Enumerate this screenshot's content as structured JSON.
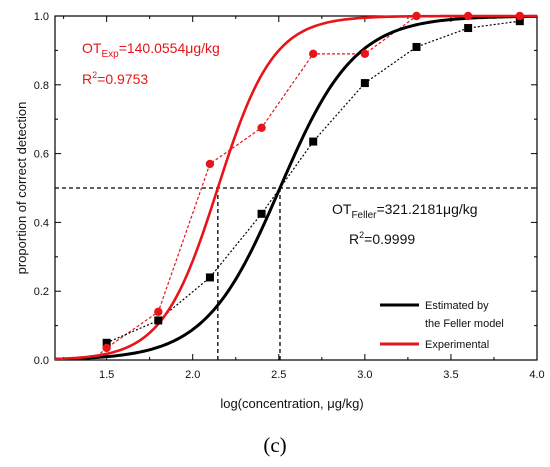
{
  "chart_data": {
    "type": "scatter",
    "xlabel": "log(concentration, μg/kg)",
    "ylabel": "proportion of correct detection",
    "xlim": [
      1.2,
      4.0
    ],
    "ylim": [
      0.0,
      1.0
    ],
    "xticks": [
      "1.5",
      "2.0",
      "2.5",
      "3.0",
      "3.5",
      "4.0"
    ],
    "yticks": [
      "0.0",
      "0.2",
      "0.4",
      "0.6",
      "0.8",
      "1.0"
    ],
    "series": [
      {
        "name": "Estimated by the Feller model",
        "legend_line1": "Estimated by",
        "legend_line2": "the Feller model",
        "color": "#000000",
        "points": [
          {
            "x": 1.5,
            "y": 0.05
          },
          {
            "x": 1.8,
            "y": 0.115
          },
          {
            "x": 2.1,
            "y": 0.24
          },
          {
            "x": 2.4,
            "y": 0.425
          },
          {
            "x": 2.7,
            "y": 0.635
          },
          {
            "x": 3.0,
            "y": 0.805
          },
          {
            "x": 3.3,
            "y": 0.91
          },
          {
            "x": 3.6,
            "y": 0.965
          },
          {
            "x": 3.9,
            "y": 0.985
          }
        ],
        "fit_midpoint": 2.507,
        "fit_slope": 4.6
      },
      {
        "name": "Experimental",
        "color": "#e8141a",
        "points": [
          {
            "x": 1.5,
            "y": 0.035
          },
          {
            "x": 1.8,
            "y": 0.14
          },
          {
            "x": 2.1,
            "y": 0.57
          },
          {
            "x": 2.4,
            "y": 0.675
          },
          {
            "x": 2.7,
            "y": 0.89
          },
          {
            "x": 3.0,
            "y": 0.89
          },
          {
            "x": 3.3,
            "y": 1.0
          },
          {
            "x": 3.6,
            "y": 1.0
          },
          {
            "x": 3.9,
            "y": 1.0
          }
        ],
        "fit_midpoint": 2.146,
        "fit_slope": 6.2
      }
    ],
    "threshold_y": 0.5,
    "threshold_xs": [
      2.146,
      2.507
    ],
    "annotations": {
      "exp_ot_prefix": "OT",
      "exp_ot_sub": "Exp",
      "exp_ot_value": "=140.0554μg/kg",
      "exp_r2_prefix": "R",
      "exp_r2_sup": "2",
      "exp_r2_value": "=0.9753",
      "feller_ot_prefix": "OT",
      "feller_ot_sub": "Feller",
      "feller_ot_value": "=321.2181μg/kg",
      "feller_r2_prefix": "R",
      "feller_r2_sup": "2",
      "feller_r2_value": "=0.9999"
    },
    "legend_position": "bottom-right",
    "grid": false
  },
  "panel_label": "(c)"
}
